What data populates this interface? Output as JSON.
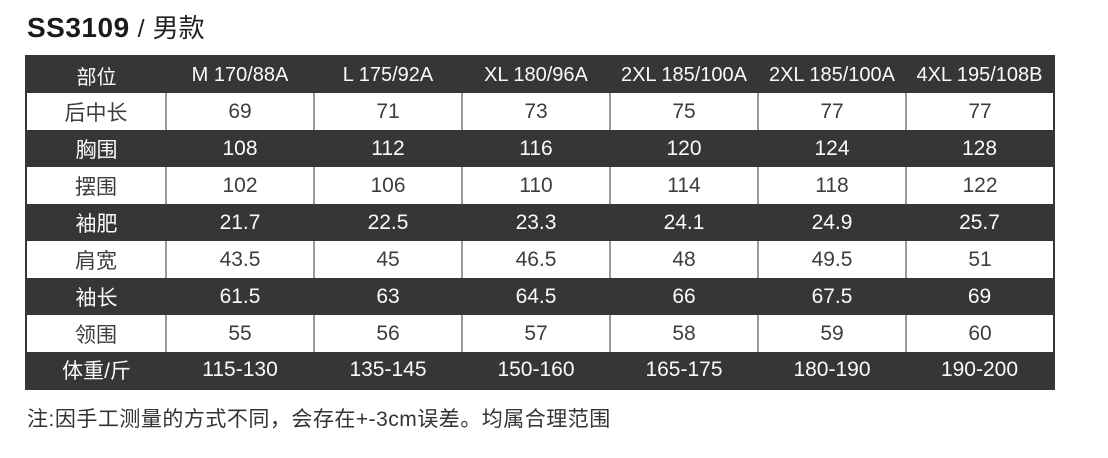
{
  "title": {
    "code": "SS3109",
    "separator": "/",
    "variant": "男款"
  },
  "table": {
    "columns": [
      "部位",
      "M 170/88A",
      "L 175/92A",
      "XL 180/96A",
      "2XL 185/100A",
      "2XL 185/100A",
      "4XL 195/108B"
    ],
    "rows": [
      {
        "label": "后中长",
        "values": [
          "69",
          "71",
          "73",
          "75",
          "77",
          "77"
        ]
      },
      {
        "label": "胸围",
        "values": [
          "108",
          "112",
          "116",
          "120",
          "124",
          "128"
        ]
      },
      {
        "label": "摆围",
        "values": [
          "102",
          "106",
          "110",
          "114",
          "118",
          "122"
        ]
      },
      {
        "label": "袖肥",
        "values": [
          "21.7",
          "22.5",
          "23.3",
          "24.1",
          "24.9",
          "25.7"
        ]
      },
      {
        "label": "肩宽",
        "values": [
          "43.5",
          "45",
          "46.5",
          "48",
          "49.5",
          "51"
        ]
      },
      {
        "label": "袖长",
        "values": [
          "61.5",
          "63",
          "64.5",
          "66",
          "67.5",
          "69"
        ]
      },
      {
        "label": "领围",
        "values": [
          "55",
          "56",
          "57",
          "58",
          "59",
          "60"
        ]
      },
      {
        "label": "体重/斤",
        "values": [
          "115-130",
          "135-145",
          "150-160",
          "165-175",
          "180-190",
          "190-200"
        ]
      }
    ]
  },
  "note": "注:因手工测量的方式不同，会存在+-3cm误差。均属合理范围",
  "colors": {
    "dark_row_bg": "#363636",
    "light_row_bg": "#ffffff",
    "dark_text": "#3d3d3d",
    "light_text": "#fafafa",
    "cell_separator": "#9a9a9a"
  }
}
